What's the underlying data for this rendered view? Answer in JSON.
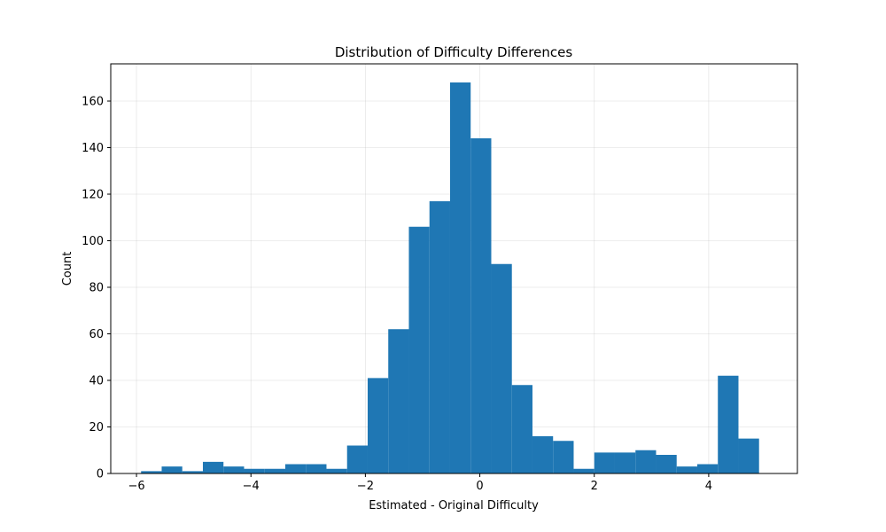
{
  "chart_data": {
    "type": "bar",
    "title": "Distribution of Difficulty Differences",
    "xlabel": "Estimated - Original Difficulty",
    "ylabel": "Count",
    "xlim": [
      -6.45,
      5.55
    ],
    "ylim": [
      0,
      176
    ],
    "grid": true,
    "bar_color": "#1f77b4",
    "x_ticks": [
      {
        "value": -6,
        "label": "−6"
      },
      {
        "value": -4,
        "label": "−4"
      },
      {
        "value": -2,
        "label": "−2"
      },
      {
        "value": 0,
        "label": "0"
      },
      {
        "value": 2,
        "label": "2"
      },
      {
        "value": 4,
        "label": "4"
      }
    ],
    "y_ticks": [
      {
        "value": 0,
        "label": "0"
      },
      {
        "value": 20,
        "label": "20"
      },
      {
        "value": 40,
        "label": "40"
      },
      {
        "value": 60,
        "label": "60"
      },
      {
        "value": 80,
        "label": "80"
      },
      {
        "value": 100,
        "label": "100"
      },
      {
        "value": 120,
        "label": "120"
      },
      {
        "value": 140,
        "label": "140"
      },
      {
        "value": 160,
        "label": "160"
      }
    ],
    "bins": [
      {
        "x0": -5.92,
        "x1": -5.56,
        "count": 1
      },
      {
        "x0": -5.56,
        "x1": -5.2,
        "count": 3
      },
      {
        "x0": -5.2,
        "x1": -4.84,
        "count": 1
      },
      {
        "x0": -4.84,
        "x1": -4.48,
        "count": 5
      },
      {
        "x0": -4.48,
        "x1": -4.12,
        "count": 3
      },
      {
        "x0": -4.12,
        "x1": -3.76,
        "count": 2
      },
      {
        "x0": -3.76,
        "x1": -3.4,
        "count": 2
      },
      {
        "x0": -3.4,
        "x1": -3.04,
        "count": 4
      },
      {
        "x0": -3.04,
        "x1": -2.68,
        "count": 4
      },
      {
        "x0": -2.68,
        "x1": -2.32,
        "count": 2
      },
      {
        "x0": -2.32,
        "x1": -1.96,
        "count": 12
      },
      {
        "x0": -1.96,
        "x1": -1.6,
        "count": 41
      },
      {
        "x0": -1.6,
        "x1": -1.24,
        "count": 62
      },
      {
        "x0": -1.24,
        "x1": -0.88,
        "count": 106
      },
      {
        "x0": -0.88,
        "x1": -0.52,
        "count": 117
      },
      {
        "x0": -0.52,
        "x1": -0.16,
        "count": 168
      },
      {
        "x0": -0.16,
        "x1": 0.2,
        "count": 144
      },
      {
        "x0": 0.2,
        "x1": 0.56,
        "count": 90
      },
      {
        "x0": 0.56,
        "x1": 0.92,
        "count": 38
      },
      {
        "x0": 0.92,
        "x1": 1.28,
        "count": 16
      },
      {
        "x0": 1.28,
        "x1": 1.64,
        "count": 14
      },
      {
        "x0": 1.64,
        "x1": 2.0,
        "count": 2
      },
      {
        "x0": 2.0,
        "x1": 2.36,
        "count": 9
      },
      {
        "x0": 2.36,
        "x1": 2.72,
        "count": 9
      },
      {
        "x0": 2.72,
        "x1": 3.08,
        "count": 10
      },
      {
        "x0": 3.08,
        "x1": 3.44,
        "count": 8
      },
      {
        "x0": 3.44,
        "x1": 3.8,
        "count": 3
      },
      {
        "x0": 3.8,
        "x1": 4.16,
        "count": 4
      },
      {
        "x0": 4.16,
        "x1": 4.52,
        "count": 42
      },
      {
        "x0": 4.52,
        "x1": 4.88,
        "count": 15
      }
    ]
  }
}
